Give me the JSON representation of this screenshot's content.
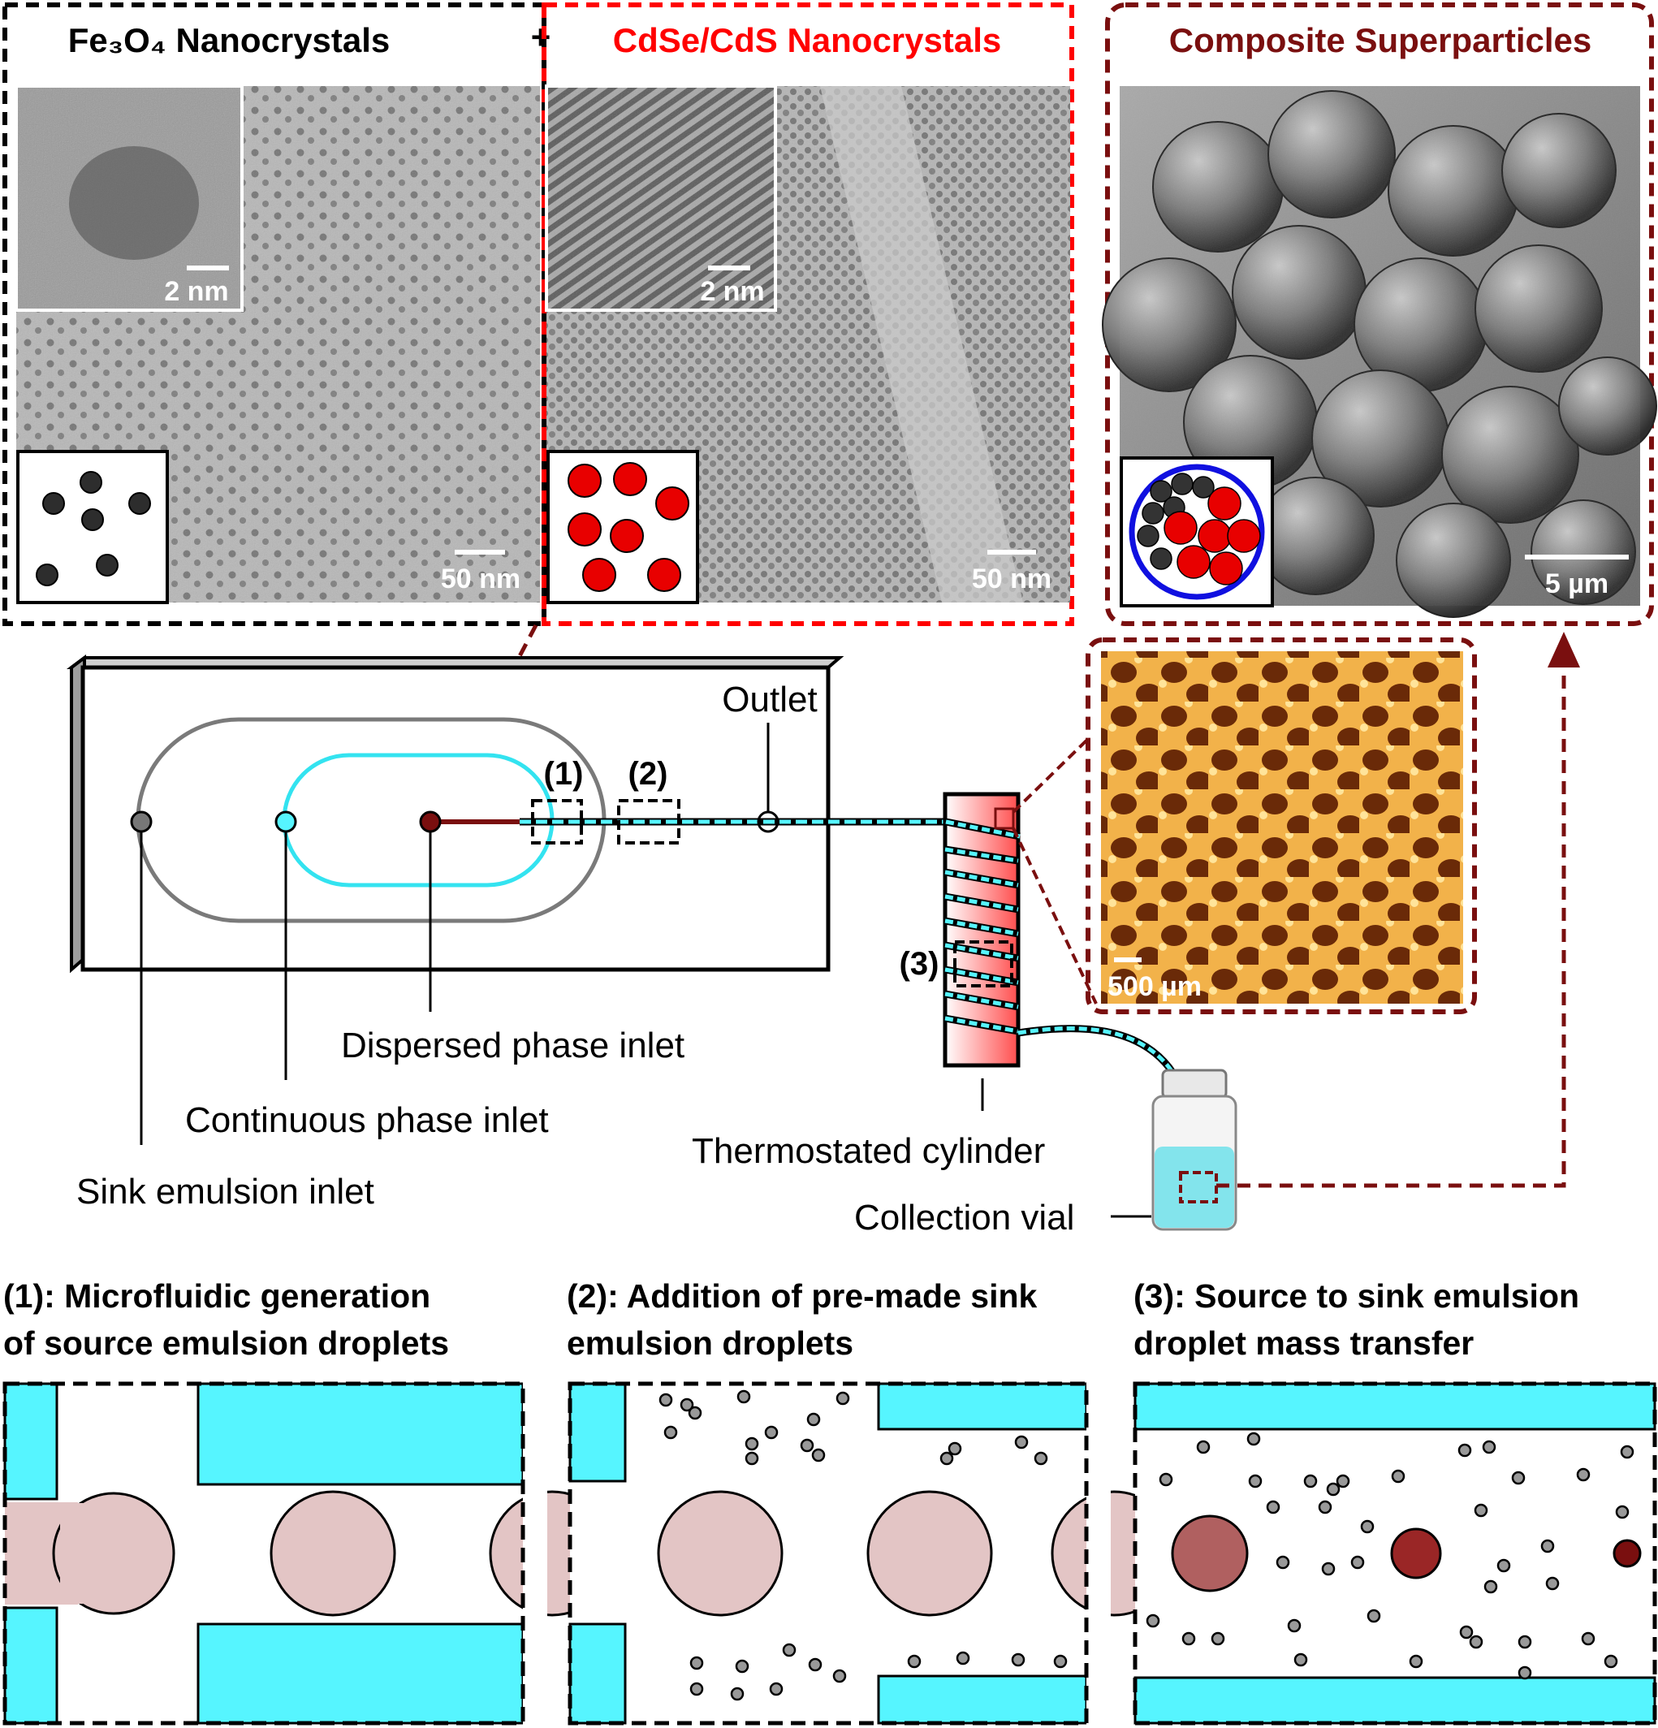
{
  "panels": {
    "fe3o4_title": "Fe₃O₄ Nanocrystals",
    "plus": "+",
    "cdse_title": "CdSe/CdS Nanocrystals",
    "composite_title": "Composite Superparticles",
    "fe3o4_inset_scale": "2 nm",
    "fe3o4_scale": "50 nm",
    "cdse_inset_scale": "2 nm",
    "cdse_scale": "50 nm",
    "sem_scale": "5 µm",
    "optical_scale": "500 µm"
  },
  "chip": {
    "outlet": "Outlet",
    "marker_1": "(1)",
    "marker_2": "(2)",
    "marker_3": "(3)",
    "dispersed_inlet": "Dispersed phase inlet",
    "continuous_inlet": "Continuous phase inlet",
    "sink_inlet": "Sink emulsion inlet",
    "cylinder": "Thermostated cylinder",
    "vial": "Collection vial"
  },
  "steps": [
    {
      "line1": "(1): Microfluidic generation",
      "line2": "of source emulsion droplets"
    },
    {
      "line1": "(2): Addition of pre-made sink",
      "line2": "emulsion droplets"
    },
    {
      "line1": "(3): Source to sink emulsion",
      "line2": "droplet mass transfer"
    }
  ],
  "colors": {
    "cyan": "#56f5ff",
    "red": "#ff0000",
    "dark_red": "#7a0f0f",
    "droplet_pink": "#e3c5c5",
    "sink_gray": "#999999"
  }
}
